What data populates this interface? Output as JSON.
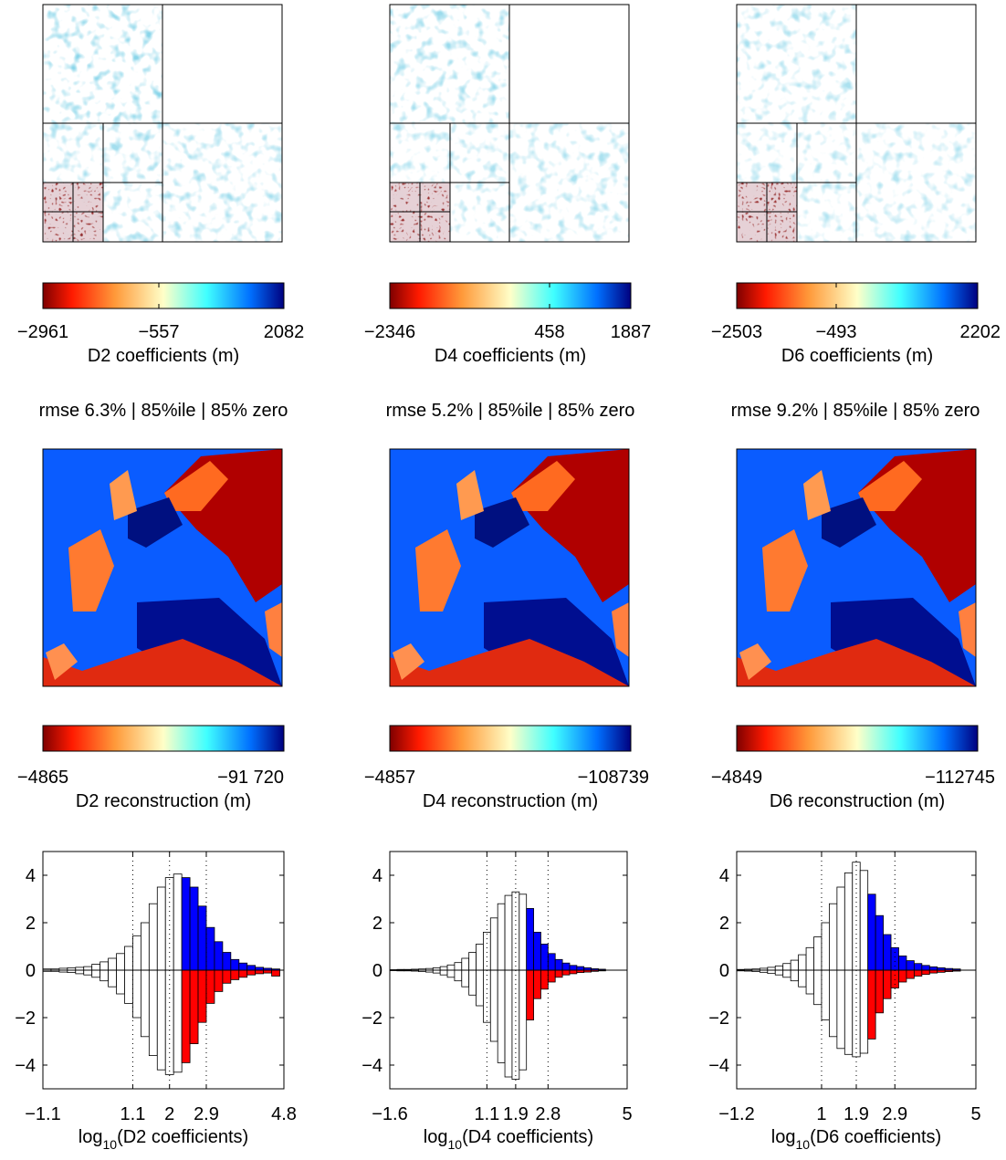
{
  "columns": [
    {
      "id": "d2",
      "coef_colorbar": {
        "ticks": [
          "−2961",
          "−557",
          "2082"
        ],
        "label": "D2 coefficients (m)"
      },
      "summary": "rmse 6.3% | 85%ile | 85% zero",
      "recon_colorbar": {
        "ticks": [
          "−4865",
          "−91 720"
        ],
        "label": "D2 reconstruction (m)"
      },
      "hist_xlabel_main": "log",
      "hist_xlabel_sub": "10",
      "hist_xlabel_rest": "(D2 coefficients)"
    },
    {
      "id": "d4",
      "coef_colorbar": {
        "ticks": [
          "−2346",
          "458",
          "1887"
        ],
        "label": "D4 coefficients (m)"
      },
      "summary": "rmse 5.2% | 85%ile | 85% zero",
      "recon_colorbar": {
        "ticks": [
          "−4857",
          "−108739"
        ],
        "label": "D4 reconstruction (m)"
      },
      "hist_xlabel_main": "log",
      "hist_xlabel_sub": "10",
      "hist_xlabel_rest": "(D4 coefficients)"
    },
    {
      "id": "d6",
      "coef_colorbar": {
        "ticks": [
          "−2503",
          "−493",
          "2202"
        ],
        "label": "D6 coefficients (m)"
      },
      "summary": "rmse 9.2% | 85%ile | 85% zero",
      "recon_colorbar": {
        "ticks": [
          "−4849",
          "−112745"
        ],
        "label": "D6 reconstruction (m)"
      },
      "hist_xlabel_main": "log",
      "hist_xlabel_sub": "10",
      "hist_xlabel_rest": "(D6 coefficients)"
    }
  ],
  "colors": {
    "colormap": [
      "#7f0000",
      "#ff2200",
      "#ffa040",
      "#ffffc0",
      "#40ffff",
      "#0060ff",
      "#00007f"
    ],
    "hist_positive_tail": "#0000ff",
    "hist_negative_tail": "#ff0000",
    "hist_bar": "#ffffff"
  },
  "chart_data": [
    {
      "type": "bar",
      "x_tick_labels": [
        "−1.1",
        "1.1",
        "2",
        "2.9",
        "4.8"
      ],
      "x_ticks": [
        -1.1,
        1.1,
        2.0,
        2.9,
        4.8
      ],
      "xlim": [
        -1.1,
        4.8
      ],
      "dotted_lines": [
        1.1,
        2.0,
        2.9
      ],
      "y_tick_labels": [
        "4",
        "2",
        "0",
        "−2",
        "−4"
      ],
      "y_ticks": [
        4,
        2,
        0,
        -2,
        -4
      ],
      "ylim": [
        -5,
        5
      ],
      "bin_width": 0.2,
      "threshold": 2.4,
      "bins_upper": [
        {
          "x": -1.0,
          "value": 0.05
        },
        {
          "x": -0.8,
          "value": 0.05
        },
        {
          "x": -0.6,
          "value": 0.08
        },
        {
          "x": -0.4,
          "value": 0.1
        },
        {
          "x": -0.2,
          "value": 0.12
        },
        {
          "x": 0.0,
          "value": 0.15
        },
        {
          "x": 0.2,
          "value": 0.25
        },
        {
          "x": 0.4,
          "value": 0.35
        },
        {
          "x": 0.6,
          "value": 0.5
        },
        {
          "x": 0.8,
          "value": 0.7
        },
        {
          "x": 1.0,
          "value": 1.0
        },
        {
          "x": 1.2,
          "value": 1.45
        },
        {
          "x": 1.4,
          "value": 2.0
        },
        {
          "x": 1.6,
          "value": 2.8
        },
        {
          "x": 1.8,
          "value": 3.5
        },
        {
          "x": 2.0,
          "value": 3.9
        },
        {
          "x": 2.2,
          "value": 4.05
        },
        {
          "x": 2.4,
          "value": 3.9
        },
        {
          "x": 2.6,
          "value": 3.5
        },
        {
          "x": 2.8,
          "value": 2.7
        },
        {
          "x": 3.0,
          "value": 1.8
        },
        {
          "x": 3.2,
          "value": 1.2
        },
        {
          "x": 3.4,
          "value": 0.75
        },
        {
          "x": 3.6,
          "value": 0.45
        },
        {
          "x": 3.8,
          "value": 0.3
        },
        {
          "x": 4.0,
          "value": 0.2
        },
        {
          "x": 4.2,
          "value": 0.12
        },
        {
          "x": 4.4,
          "value": 0.08
        },
        {
          "x": 4.6,
          "value": 0.05
        }
      ],
      "bins_lower": [
        {
          "x": -1.0,
          "value": -0.05
        },
        {
          "x": -0.8,
          "value": -0.05
        },
        {
          "x": -0.6,
          "value": -0.08
        },
        {
          "x": -0.4,
          "value": -0.1
        },
        {
          "x": -0.2,
          "value": -0.15
        },
        {
          "x": 0.0,
          "value": -0.2
        },
        {
          "x": 0.2,
          "value": -0.3
        },
        {
          "x": 0.4,
          "value": -0.45
        },
        {
          "x": 0.6,
          "value": -0.7
        },
        {
          "x": 0.8,
          "value": -1.0
        },
        {
          "x": 1.0,
          "value": -1.4
        },
        {
          "x": 1.2,
          "value": -2.0
        },
        {
          "x": 1.4,
          "value": -2.8
        },
        {
          "x": 1.6,
          "value": -3.6
        },
        {
          "x": 1.8,
          "value": -4.2
        },
        {
          "x": 2.0,
          "value": -4.4
        },
        {
          "x": 2.2,
          "value": -4.3
        },
        {
          "x": 2.4,
          "value": -3.9
        },
        {
          "x": 2.6,
          "value": -3.1
        },
        {
          "x": 2.8,
          "value": -2.2
        },
        {
          "x": 3.0,
          "value": -1.4
        },
        {
          "x": 3.2,
          "value": -0.9
        },
        {
          "x": 3.4,
          "value": -0.55
        },
        {
          "x": 3.6,
          "value": -0.4
        },
        {
          "x": 3.8,
          "value": -0.3
        },
        {
          "x": 4.0,
          "value": -0.2
        },
        {
          "x": 4.2,
          "value": -0.15
        },
        {
          "x": 4.4,
          "value": -0.12
        },
        {
          "x": 4.6,
          "value": -0.25
        }
      ]
    },
    {
      "type": "bar",
      "x_tick_labels": [
        "−1.6",
        "1.1",
        "1.9",
        "2.8",
        "5"
      ],
      "x_ticks": [
        -1.6,
        1.1,
        1.9,
        2.8,
        5.0
      ],
      "xlim": [
        -1.6,
        5.0
      ],
      "dotted_lines": [
        1.1,
        1.9,
        2.8
      ],
      "y_tick_labels": [
        "4",
        "2",
        "0",
        "−2",
        "−4"
      ],
      "y_ticks": [
        4,
        2,
        0,
        -2,
        -4
      ],
      "ylim": [
        -5,
        5
      ],
      "bin_width": 0.2,
      "threshold": 2.3,
      "bins_upper": [
        {
          "x": -1.5,
          "value": 0.02
        },
        {
          "x": -1.3,
          "value": 0.03
        },
        {
          "x": -1.1,
          "value": 0.03
        },
        {
          "x": -0.9,
          "value": 0.04
        },
        {
          "x": -0.7,
          "value": 0.05
        },
        {
          "x": -0.5,
          "value": 0.07
        },
        {
          "x": -0.3,
          "value": 0.1
        },
        {
          "x": -0.1,
          "value": 0.15
        },
        {
          "x": 0.1,
          "value": 0.22
        },
        {
          "x": 0.3,
          "value": 0.32
        },
        {
          "x": 0.5,
          "value": 0.5
        },
        {
          "x": 0.7,
          "value": 0.75
        },
        {
          "x": 0.9,
          "value": 1.1
        },
        {
          "x": 1.1,
          "value": 1.6
        },
        {
          "x": 1.3,
          "value": 2.2
        },
        {
          "x": 1.5,
          "value": 2.8
        },
        {
          "x": 1.7,
          "value": 3.15
        },
        {
          "x": 1.9,
          "value": 3.3
        },
        {
          "x": 2.1,
          "value": 3.2
        },
        {
          "x": 2.3,
          "value": 2.6
        },
        {
          "x": 2.5,
          "value": 1.6
        },
        {
          "x": 2.7,
          "value": 1.1
        },
        {
          "x": 2.9,
          "value": 0.7
        },
        {
          "x": 3.1,
          "value": 0.45
        },
        {
          "x": 3.3,
          "value": 0.3
        },
        {
          "x": 3.5,
          "value": 0.2
        },
        {
          "x": 3.7,
          "value": 0.15
        },
        {
          "x": 3.9,
          "value": 0.1
        },
        {
          "x": 4.1,
          "value": 0.06
        },
        {
          "x": 4.3,
          "value": 0.04
        }
      ],
      "bins_lower": [
        {
          "x": -1.5,
          "value": -0.02
        },
        {
          "x": -1.3,
          "value": -0.03
        },
        {
          "x": -1.1,
          "value": -0.03
        },
        {
          "x": -0.9,
          "value": -0.04
        },
        {
          "x": -0.7,
          "value": -0.06
        },
        {
          "x": -0.5,
          "value": -0.08
        },
        {
          "x": -0.3,
          "value": -0.12
        },
        {
          "x": -0.1,
          "value": -0.2
        },
        {
          "x": 0.1,
          "value": -0.3
        },
        {
          "x": 0.3,
          "value": -0.45
        },
        {
          "x": 0.5,
          "value": -0.7
        },
        {
          "x": 0.7,
          "value": -1.05
        },
        {
          "x": 0.9,
          "value": -1.5
        },
        {
          "x": 1.1,
          "value": -2.2
        },
        {
          "x": 1.3,
          "value": -3.0
        },
        {
          "x": 1.5,
          "value": -3.9
        },
        {
          "x": 1.7,
          "value": -4.5
        },
        {
          "x": 1.9,
          "value": -4.6
        },
        {
          "x": 2.1,
          "value": -4.2
        },
        {
          "x": 2.3,
          "value": -2.1
        },
        {
          "x": 2.5,
          "value": -1.2
        },
        {
          "x": 2.7,
          "value": -0.8
        },
        {
          "x": 2.9,
          "value": -0.5
        },
        {
          "x": 3.1,
          "value": -0.3
        },
        {
          "x": 3.3,
          "value": -0.2
        },
        {
          "x": 3.5,
          "value": -0.15
        },
        {
          "x": 3.7,
          "value": -0.1
        },
        {
          "x": 3.9,
          "value": -0.08
        },
        {
          "x": 4.1,
          "value": -0.05
        },
        {
          "x": 4.3,
          "value": -0.03
        }
      ]
    },
    {
      "type": "bar",
      "x_tick_labels": [
        "−1.2",
        "1",
        "1.9",
        "2.9",
        "5"
      ],
      "x_ticks": [
        -1.2,
        1.0,
        1.9,
        2.9,
        5.0
      ],
      "xlim": [
        -1.2,
        5.0
      ],
      "dotted_lines": [
        1.0,
        1.9,
        2.9
      ],
      "y_tick_labels": [
        "4",
        "2",
        "0",
        "−2",
        "−4"
      ],
      "y_ticks": [
        4,
        2,
        0,
        -2,
        -4
      ],
      "ylim": [
        -5,
        5
      ],
      "bin_width": 0.2,
      "threshold": 2.3,
      "bins_upper": [
        {
          "x": -1.1,
          "value": 0.03
        },
        {
          "x": -0.9,
          "value": 0.04
        },
        {
          "x": -0.7,
          "value": 0.05
        },
        {
          "x": -0.5,
          "value": 0.08
        },
        {
          "x": -0.3,
          "value": 0.12
        },
        {
          "x": -0.1,
          "value": 0.18
        },
        {
          "x": 0.1,
          "value": 0.28
        },
        {
          "x": 0.3,
          "value": 0.42
        },
        {
          "x": 0.5,
          "value": 0.65
        },
        {
          "x": 0.7,
          "value": 0.95
        },
        {
          "x": 0.9,
          "value": 1.4
        },
        {
          "x": 1.1,
          "value": 2.0
        },
        {
          "x": 1.3,
          "value": 2.8
        },
        {
          "x": 1.5,
          "value": 3.5
        },
        {
          "x": 1.7,
          "value": 4.1
        },
        {
          "x": 1.9,
          "value": 4.55
        },
        {
          "x": 2.1,
          "value": 4.2
        },
        {
          "x": 2.3,
          "value": 3.2
        },
        {
          "x": 2.5,
          "value": 2.3
        },
        {
          "x": 2.7,
          "value": 1.5
        },
        {
          "x": 2.9,
          "value": 0.95
        },
        {
          "x": 3.1,
          "value": 0.6
        },
        {
          "x": 3.3,
          "value": 0.4
        },
        {
          "x": 3.5,
          "value": 0.28
        },
        {
          "x": 3.7,
          "value": 0.2
        },
        {
          "x": 3.9,
          "value": 0.14
        },
        {
          "x": 4.1,
          "value": 0.1
        },
        {
          "x": 4.3,
          "value": 0.07
        },
        {
          "x": 4.5,
          "value": 0.05
        }
      ],
      "bins_lower": [
        {
          "x": -1.1,
          "value": -0.03
        },
        {
          "x": -0.9,
          "value": -0.04
        },
        {
          "x": -0.7,
          "value": -0.06
        },
        {
          "x": -0.5,
          "value": -0.09
        },
        {
          "x": -0.3,
          "value": -0.14
        },
        {
          "x": -0.1,
          "value": -0.2
        },
        {
          "x": 0.1,
          "value": -0.3
        },
        {
          "x": 0.3,
          "value": -0.45
        },
        {
          "x": 0.5,
          "value": -0.7
        },
        {
          "x": 0.7,
          "value": -1.0
        },
        {
          "x": 0.9,
          "value": -1.45
        },
        {
          "x": 1.1,
          "value": -2.1
        },
        {
          "x": 1.3,
          "value": -2.8
        },
        {
          "x": 1.5,
          "value": -3.3
        },
        {
          "x": 1.7,
          "value": -3.55
        },
        {
          "x": 1.9,
          "value": -3.65
        },
        {
          "x": 2.1,
          "value": -3.5
        },
        {
          "x": 2.3,
          "value": -2.9
        },
        {
          "x": 2.5,
          "value": -1.8
        },
        {
          "x": 2.7,
          "value": -1.2
        },
        {
          "x": 2.9,
          "value": -0.75
        },
        {
          "x": 3.1,
          "value": -0.5
        },
        {
          "x": 3.3,
          "value": -0.35
        },
        {
          "x": 3.5,
          "value": -0.25
        },
        {
          "x": 3.7,
          "value": -0.18
        },
        {
          "x": 3.9,
          "value": -0.12
        },
        {
          "x": 4.1,
          "value": -0.09
        },
        {
          "x": 4.3,
          "value": -0.06
        },
        {
          "x": 4.5,
          "value": -0.04
        }
      ]
    }
  ]
}
